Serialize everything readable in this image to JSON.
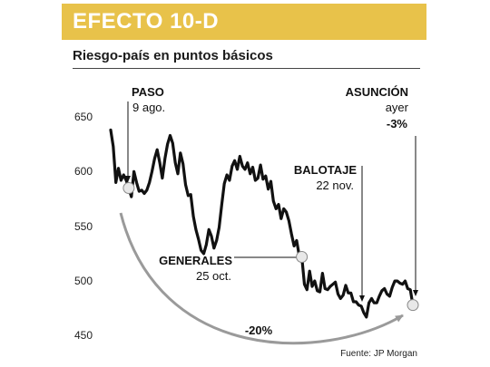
{
  "header": {
    "title": "EFECTO 10-D"
  },
  "colors": {
    "header_bg": "#e8c24a",
    "line": "#111111",
    "arrow": "#9a9a9a",
    "marker": "#e8e8e8"
  },
  "chart_data": {
    "type": "line",
    "title": "Riesgo-país en puntos básicos",
    "ylim": [
      440,
      680
    ],
    "yticks": [
      650,
      600,
      550,
      500,
      450
    ],
    "xlabel": "",
    "ylabel": "",
    "series": [
      {
        "values": [
          638,
          623,
          590,
          603,
          592,
          597,
          592,
          585,
          577,
          600,
          590,
          582,
          583,
          580,
          583,
          590,
          600,
          612,
          620,
          608,
          594,
          612,
          625,
          633,
          626,
          608,
          598,
          617,
          607,
          588,
          578,
          579,
          559,
          547,
          538,
          528,
          525,
          533,
          547,
          541,
          530,
          537,
          549,
          570,
          589,
          597,
          592,
          605,
          610,
          602,
          614,
          605,
          602,
          608,
          598,
          604,
          592,
          594,
          606,
          593,
          596,
          584,
          591,
          573,
          566,
          570,
          557,
          566,
          563,
          555,
          543,
          532,
          537,
          523,
          522,
          497,
          492,
          509,
          495,
          500,
          491,
          490,
          507,
          493,
          492,
          495,
          497,
          499,
          488,
          484,
          487,
          496,
          489,
          489,
          481,
          481,
          478,
          477,
          471,
          467,
          480,
          484,
          480,
          480,
          486,
          491,
          493,
          488,
          486,
          494,
          500,
          500,
          498,
          497,
          500,
          493,
          492,
          478
        ]
      }
    ],
    "annotations": [
      {
        "title": "PASO",
        "detail": "9 ago."
      },
      {
        "title": "GENERALES",
        "detail": "25 oct."
      },
      {
        "title": "BALOTAJE",
        "detail": "22 nov."
      },
      {
        "title": "ASUNCIÓN",
        "detail": "ayer",
        "change": "-3%"
      }
    ],
    "change_label": "-20%",
    "source": "Fuente: JP Morgan"
  }
}
